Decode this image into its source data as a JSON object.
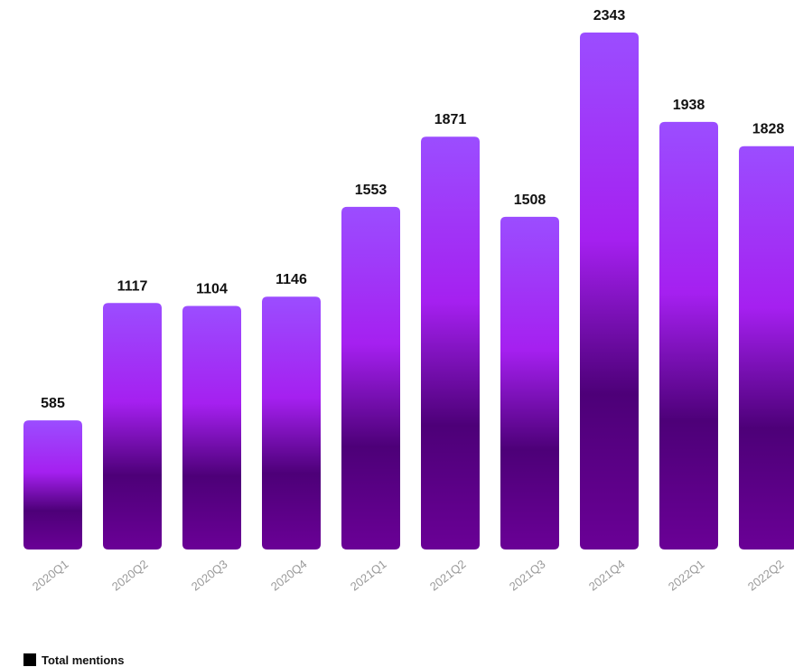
{
  "chart_data": {
    "type": "bar",
    "categories": [
      "2020Q1",
      "2020Q2",
      "2020Q3",
      "2020Q4",
      "2021Q1",
      "2021Q2",
      "2021Q3",
      "2021Q4",
      "2022Q1",
      "2022Q2"
    ],
    "series": [
      {
        "name": "Total mentions",
        "values": [
          585,
          1117,
          1104,
          1146,
          1553,
          1871,
          1508,
          2343,
          1938,
          1828
        ]
      }
    ],
    "data_labels": [
      "585",
      "1117",
      "1104",
      "1146",
      "1553",
      "1871",
      "1508",
      "2343",
      "1938",
      "1828"
    ],
    "title": "",
    "xlabel": "",
    "ylabel": "",
    "ylim": [
      0,
      2343
    ],
    "grid": false,
    "legend_placement": "bottom-left",
    "colors": {
      "bar_top": "#9b4dff",
      "bar_middle": "#a520f0",
      "bar_dark": "#4d0078",
      "bar_bottom": "#6a0096",
      "label": "#111111",
      "tick_label": "#9a9a9a",
      "legend_swatch": "#000000"
    }
  }
}
